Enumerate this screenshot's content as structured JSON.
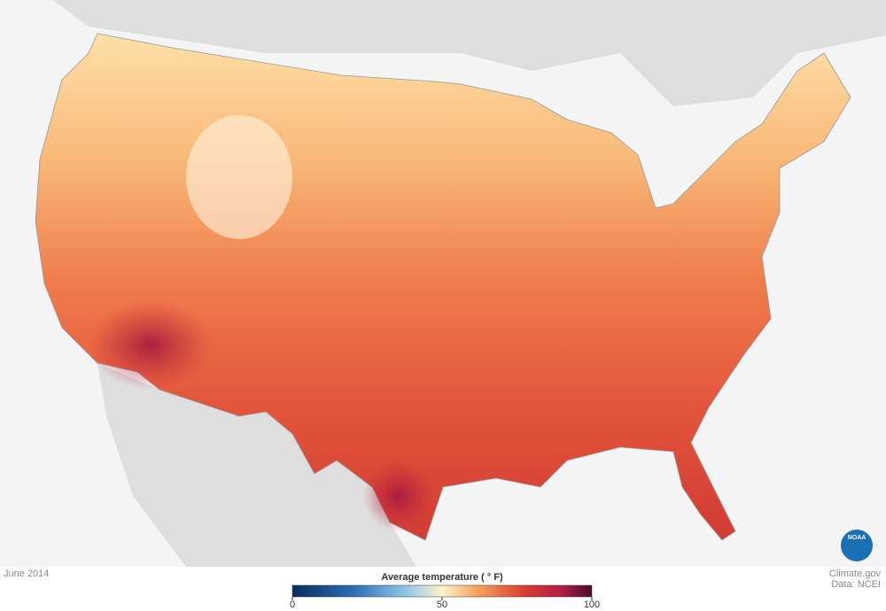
{
  "caption": "June 2014",
  "legend": {
    "title": "Average temperature ( ° F)",
    "ticks": [
      0,
      50,
      100
    ],
    "lim": [
      0,
      100
    ]
  },
  "credits": [
    "Climate.gov",
    "Data: NCEI"
  ],
  "logo": "NOAA"
}
